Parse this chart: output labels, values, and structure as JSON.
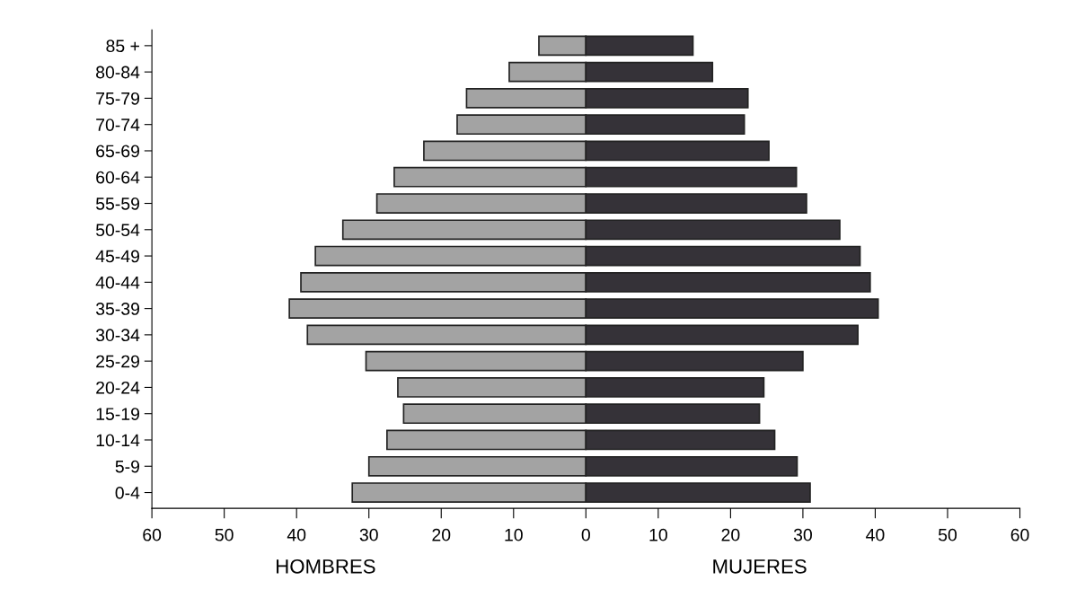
{
  "chart_data": {
    "type": "bar",
    "orientation": "horizontal",
    "stacked": true,
    "categories": [
      "85 +",
      "80-84",
      "75-79",
      "70-74",
      "65-69",
      "60-64",
      "55-59",
      "50-54",
      "45-49",
      "40-44",
      "35-39",
      "30-34",
      "25-29",
      "20-24",
      "15-19",
      "10-14",
      "5-9",
      "0-4"
    ],
    "series": [
      {
        "color": "#a3a3a3",
        "values": [
          -6.5,
          -10.6,
          -16.5,
          -17.8,
          -22.4,
          -26.5,
          -28.9,
          -33.6,
          -37.4,
          -39.4,
          -41,
          -38.5,
          -30.4,
          -26,
          -25.2,
          -27.5,
          -30,
          -32.3
        ]
      },
      {
        "color": "#353238",
        "values": [
          14.8,
          17.5,
          22.4,
          21.9,
          25.3,
          29.1,
          30.5,
          35.1,
          37.9,
          39.3,
          40.4,
          37.6,
          30,
          24.6,
          24,
          26.1,
          29.2,
          31
        ]
      }
    ],
    "xlim": [
      -60,
      60
    ],
    "xticks": [
      {
        "value": -60,
        "label": "60"
      },
      {
        "value": -50,
        "label": "50"
      },
      {
        "value": -40,
        "label": "40"
      },
      {
        "value": -30,
        "label": "30"
      },
      {
        "value": -20,
        "label": "20"
      },
      {
        "value": -10,
        "label": "10"
      },
      0,
      10,
      20,
      30,
      40,
      50,
      60
    ],
    "annotations": [
      "HOMBRES",
      "MUJERES"
    ],
    "grid": false,
    "legend": false
  }
}
